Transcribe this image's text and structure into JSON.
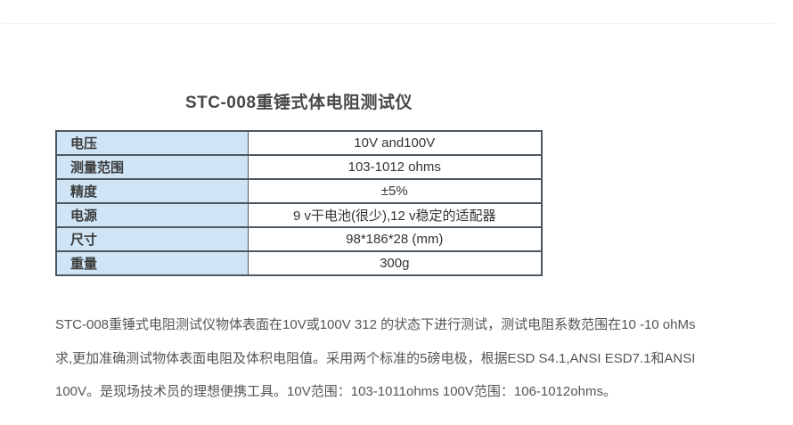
{
  "colors": {
    "label_bg": "#cfe5f5",
    "border": "#4d5760",
    "title_text": "#484848",
    "label_text": "#3c3c3c",
    "value_text": "#333333",
    "body_text": "#555555",
    "divider": "#f1f1f1"
  },
  "title": "STC-008重锤式体电阻测试仪",
  "spec_table": {
    "rows": [
      {
        "label": "电压",
        "value": "10V and100V"
      },
      {
        "label": "测量范围",
        "value": "103-1012 ohms"
      },
      {
        "label": "精度",
        "value": "±5%"
      },
      {
        "label": "电源",
        "value": "9 v干电池(很少),12 v稳定的适配器"
      },
      {
        "label": "尺寸",
        "value": "98*186*28 (mm)"
      },
      {
        "label": "重量",
        "value": "300g"
      }
    ]
  },
  "description": {
    "lines": [
      "STC-008重锤式电阻测试仪物体表面在10V或100V 312 的状态下进行测试，测试电阻系数范围在10 -10 ohMs",
      "求,更加准确测试物体表面电阻及体积电阻值。采用两个标准的5磅电极，根据ESD S4.1,ANSI ESD7.1和ANSI",
      "100V。是现场技术员的理想便携工具。10V范围：103-1011ohms 100V范围：106-1012ohms。"
    ]
  }
}
